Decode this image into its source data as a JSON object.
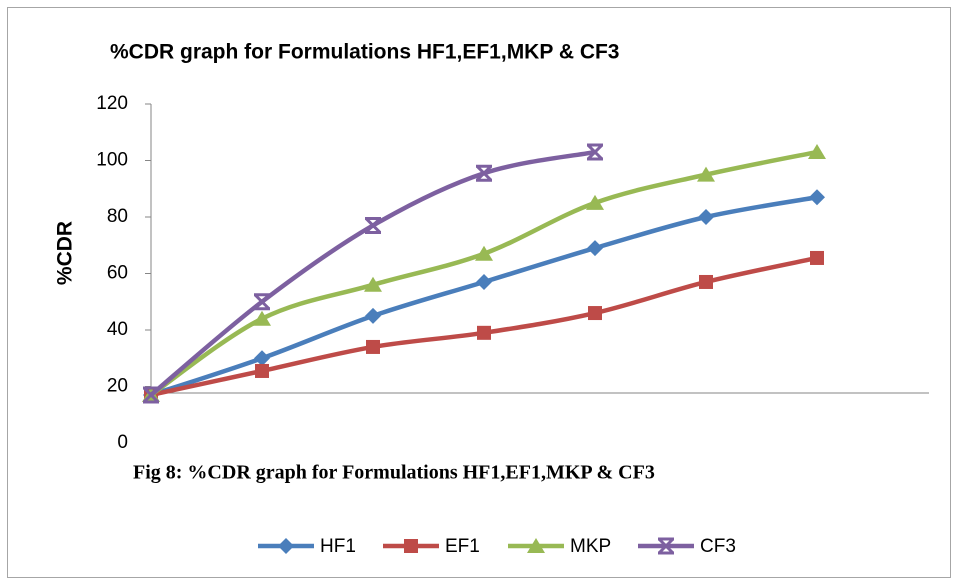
{
  "chart_data": {
    "type": "line",
    "title": "%CDR graph for Formulations  HF1,EF1,MKP & CF3",
    "y_label": "%CDR",
    "annotation": "Fig 8: %CDR graph for Formulations  HF1,EF1,MKP & CF3",
    "categories": [
      null,
      null,
      null,
      null,
      null,
      null,
      null
    ],
    "series": [
      {
        "name": "HF1",
        "color": "#4a7ebb",
        "marker": "diamond",
        "values": [
          17,
          30,
          45,
          57,
          69,
          80,
          87
        ]
      },
      {
        "name": "EF1",
        "color": "#be4b48",
        "marker": "square",
        "values": [
          17,
          25.5,
          34,
          39,
          46,
          57,
          65.5
        ]
      },
      {
        "name": "MKP",
        "color": "#98b954",
        "marker": "triangle",
        "values": [
          17,
          44,
          56,
          67,
          85,
          95,
          103
        ]
      },
      {
        "name": "CF3",
        "color": "#7d60a0",
        "marker": "star",
        "values": [
          17,
          50,
          77,
          95.5,
          103,
          null,
          null
        ]
      }
    ],
    "ylim": [
      0,
      120
    ],
    "yticks": [
      0,
      20,
      40,
      60,
      80,
      100,
      120
    ],
    "grid": false,
    "legend": "bottom"
  }
}
